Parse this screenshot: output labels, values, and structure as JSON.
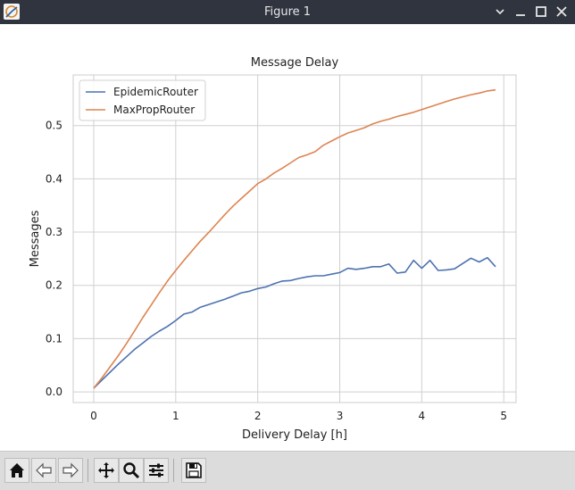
{
  "window": {
    "title": "Figure 1",
    "controls": [
      "minimize",
      "restore",
      "maximize",
      "close"
    ]
  },
  "toolbar": {
    "buttons": [
      "home-icon",
      "back-icon",
      "forward-icon",
      "pan-icon",
      "zoom-icon",
      "configure-subplots-icon",
      "save-icon"
    ]
  },
  "colors": {
    "titlebar": "#2f343f",
    "toolbar": "#dcdcdc",
    "series_epidemic": "#4c72b0",
    "series_maxprop": "#dd8452",
    "grid": "#d0d0d0"
  },
  "chart_data": {
    "type": "line",
    "title": "Message Delay",
    "xlabel": "Delivery Delay [h]",
    "ylabel": "Messages",
    "xlim": [
      -0.25,
      5.15
    ],
    "ylim": [
      -0.02,
      0.595
    ],
    "xticks": [
      0,
      1,
      2,
      3,
      4,
      5
    ],
    "yticks": [
      0.0,
      0.1,
      0.2,
      0.3,
      0.4,
      0.5
    ],
    "xtick_labels": [
      "0",
      "1",
      "2",
      "3",
      "4",
      "5"
    ],
    "ytick_labels": [
      "0.0",
      "0.1",
      "0.2",
      "0.3",
      "0.4",
      "0.5"
    ],
    "grid": true,
    "legend_position": "upper-left",
    "series": [
      {
        "name": "EpidemicRouter",
        "color": "#4c72b0",
        "x": [
          0.0,
          0.1,
          0.2,
          0.3,
          0.4,
          0.5,
          0.6,
          0.7,
          0.8,
          0.9,
          1.0,
          1.1,
          1.2,
          1.3,
          1.4,
          1.5,
          1.6,
          1.7,
          1.8,
          1.9,
          2.0,
          2.1,
          2.2,
          2.3,
          2.4,
          2.5,
          2.6,
          2.7,
          2.8,
          2.9,
          3.0,
          3.1,
          3.2,
          3.3,
          3.4,
          3.5,
          3.6,
          3.7,
          3.8,
          3.9,
          4.0,
          4.1,
          4.2,
          4.3,
          4.4,
          4.5,
          4.6,
          4.7,
          4.8,
          4.9
        ],
        "y": [
          0.007,
          0.022,
          0.037,
          0.052,
          0.066,
          0.08,
          0.092,
          0.104,
          0.114,
          0.123,
          0.134,
          0.146,
          0.15,
          0.159,
          0.164,
          0.169,
          0.174,
          0.18,
          0.186,
          0.189,
          0.194,
          0.197,
          0.203,
          0.208,
          0.209,
          0.213,
          0.216,
          0.218,
          0.218,
          0.221,
          0.224,
          0.232,
          0.23,
          0.232,
          0.235,
          0.235,
          0.24,
          0.223,
          0.225,
          0.247,
          0.232,
          0.247,
          0.228,
          0.229,
          0.231,
          0.241,
          0.251,
          0.244,
          0.252,
          0.235
        ]
      },
      {
        "name": "MaxPropRouter",
        "color": "#dd8452",
        "x": [
          0.0,
          0.1,
          0.2,
          0.3,
          0.4,
          0.5,
          0.6,
          0.7,
          0.8,
          0.9,
          1.0,
          1.1,
          1.2,
          1.3,
          1.4,
          1.5,
          1.6,
          1.7,
          1.8,
          1.9,
          2.0,
          2.1,
          2.2,
          2.3,
          2.4,
          2.5,
          2.6,
          2.7,
          2.8,
          2.9,
          3.0,
          3.1,
          3.2,
          3.3,
          3.4,
          3.5,
          3.6,
          3.7,
          3.8,
          3.9,
          4.0,
          4.1,
          4.2,
          4.3,
          4.4,
          4.5,
          4.6,
          4.7,
          4.8,
          4.9
        ],
        "y": [
          0.007,
          0.026,
          0.047,
          0.068,
          0.091,
          0.115,
          0.14,
          0.163,
          0.186,
          0.208,
          0.228,
          0.247,
          0.265,
          0.283,
          0.299,
          0.316,
          0.333,
          0.349,
          0.363,
          0.377,
          0.391,
          0.4,
          0.411,
          0.42,
          0.43,
          0.44,
          0.445,
          0.451,
          0.463,
          0.471,
          0.479,
          0.486,
          0.491,
          0.496,
          0.503,
          0.508,
          0.512,
          0.517,
          0.521,
          0.525,
          0.53,
          0.535,
          0.54,
          0.545,
          0.55,
          0.554,
          0.558,
          0.561,
          0.565,
          0.567
        ]
      }
    ]
  }
}
